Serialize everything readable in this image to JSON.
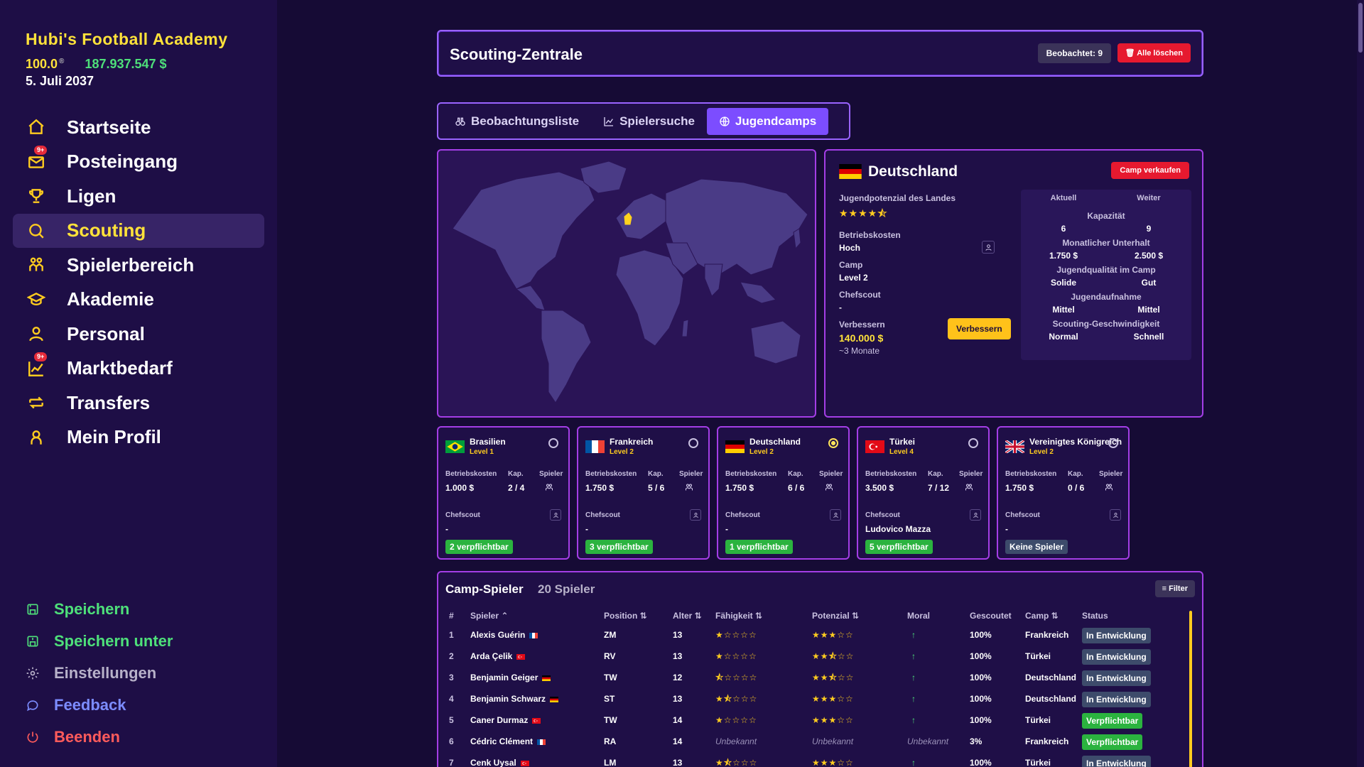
{
  "sidebar": {
    "brand": "Hubi's Football Academy",
    "reputation": "100.0",
    "reputation_mark": "®",
    "money": "187.937.547 $",
    "date": "5. Juli 2037",
    "nav": [
      {
        "label": "Startseite",
        "icon": "home-icon"
      },
      {
        "label": "Posteingang",
        "icon": "mail-icon",
        "badge": "9+"
      },
      {
        "label": "Ligen",
        "icon": "trophy-icon"
      },
      {
        "label": "Scouting",
        "icon": "search-icon",
        "active": true
      },
      {
        "label": "Spielerbereich",
        "icon": "players-icon"
      },
      {
        "label": "Akademie",
        "icon": "graduation-cap-icon"
      },
      {
        "label": "Personal",
        "icon": "staff-icon"
      },
      {
        "label": "Marktbedarf",
        "icon": "chart-icon",
        "badge": "9+"
      },
      {
        "label": "Transfers",
        "icon": "transfer-icon"
      },
      {
        "label": "Mein Profil",
        "icon": "profile-icon"
      }
    ],
    "bottom": [
      {
        "label": "Speichern",
        "icon": "save-icon"
      },
      {
        "label": "Speichern unter",
        "icon": "save-as-icon"
      },
      {
        "label": "Einstellungen",
        "icon": "gear-icon"
      },
      {
        "label": "Feedback",
        "icon": "chat-icon"
      },
      {
        "label": "Beenden",
        "icon": "power-icon"
      }
    ]
  },
  "header": {
    "title": "Scouting-Zentrale",
    "observed": "Beobachtet: 9",
    "clear_all": "Alle löschen"
  },
  "tabs": [
    {
      "label": "Beobachtungsliste",
      "icon": "binoculars-icon"
    },
    {
      "label": "Spielersuche",
      "icon": "chart-line-icon"
    },
    {
      "label": "Jugendcamps",
      "icon": "globe-icon",
      "active": true
    }
  ],
  "country": {
    "name": "Deutschland",
    "sell": "Camp verkaufen",
    "youth_potential_label": "Jugendpotenzial des Landes",
    "youth_potential_stars": 4.5,
    "youth_potential_display": "★★★★⯪",
    "operating_costs_label": "Betriebskosten",
    "operating_costs": "Hoch",
    "camp_label": "Camp",
    "camp": "Level 2",
    "chief_scout_label": "Chefscout",
    "chief_scout": "-",
    "improve_label": "Verbessern",
    "improve_cost": "140.000 $",
    "improve_duration": "~3 Monate",
    "improve_button": "Verbessern",
    "compare": {
      "current": "Aktuell",
      "next": "Weiter",
      "rows": [
        {
          "label": "Kapazität",
          "current": "6",
          "next": "9"
        },
        {
          "label": "Monatlicher Unterhalt",
          "current": "1.750 $",
          "next": "2.500 $"
        },
        {
          "label": "Jugendqualität im Camp",
          "current": "Solide",
          "next": "Gut"
        },
        {
          "label": "Jugendaufnahme",
          "current": "Mittel",
          "next": "Mittel"
        },
        {
          "label": "Scouting-Geschwindigkeit",
          "current": "Normal",
          "next": "Schnell"
        }
      ]
    }
  },
  "camp_labels": {
    "costs": "Betriebskosten",
    "cap": "Kap.",
    "players": "Spieler",
    "chief": "Chefscout"
  },
  "camps": [
    {
      "name": "Brasilien",
      "level": "Level 1",
      "costs": "1.000 $",
      "cap": "2 / 4",
      "chief": "-",
      "pill": "2 verpflichtbar",
      "pill_type": "green",
      "selected": false
    },
    {
      "name": "Frankreich",
      "level": "Level 2",
      "costs": "1.750 $",
      "cap": "5 / 6",
      "chief": "-",
      "pill": "3 verpflichtbar",
      "pill_type": "green",
      "selected": false
    },
    {
      "name": "Deutschland",
      "level": "Level 2",
      "costs": "1.750 $",
      "cap": "6 / 6",
      "chief": "-",
      "pill": "1 verpflichtbar",
      "pill_type": "green",
      "selected": true
    },
    {
      "name": "Türkei",
      "level": "Level 4",
      "costs": "3.500 $",
      "cap": "7 / 12",
      "chief": "Ludovico Mazza",
      "pill": "5 verpflichtbar",
      "pill_type": "green",
      "selected": false
    },
    {
      "name": "Vereinigtes Königreich",
      "level": "Level 2",
      "costs": "1.750 $",
      "cap": "0 / 6",
      "chief": "-",
      "pill": "Keine Spieler",
      "pill_type": "gray",
      "selected": false
    }
  ],
  "players": {
    "title": "Camp-Spieler",
    "count": "20 Spieler",
    "filter": "Filter",
    "columns": [
      "#",
      "Spieler ⌃",
      "Position ⇅",
      "Alter ⇅",
      "Fähigkeit ⇅",
      "Potenzial ⇅",
      "Moral",
      "Gescoutet",
      "Camp ⇅",
      "Status"
    ],
    "rows": [
      {
        "n": "1",
        "name": "Alexis Guérin",
        "flag": "fr",
        "pos": "ZM",
        "age": "13",
        "skill": "★☆☆☆☆",
        "pot": "★★★☆☆",
        "moral": "↑",
        "scouted": "100%",
        "camp": "Frankreich",
        "status": "In Entwicklung",
        "st": "dev"
      },
      {
        "n": "2",
        "name": "Arda Çelik",
        "flag": "tr",
        "pos": "RV",
        "age": "13",
        "skill": "★☆☆☆☆",
        "pot": "★★⯪☆☆",
        "moral": "↑",
        "scouted": "100%",
        "camp": "Türkei",
        "status": "In Entwicklung",
        "st": "dev"
      },
      {
        "n": "3",
        "name": "Benjamin Geiger",
        "flag": "de",
        "pos": "TW",
        "age": "12",
        "skill": "⯪☆☆☆☆",
        "pot": "★★⯪☆☆",
        "moral": "↑",
        "scouted": "100%",
        "camp": "Deutschland",
        "status": "In Entwicklung",
        "st": "dev"
      },
      {
        "n": "4",
        "name": "Benjamin Schwarz",
        "flag": "de",
        "pos": "ST",
        "age": "13",
        "skill": "★⯪☆☆☆",
        "pot": "★★★☆☆",
        "moral": "↑",
        "scouted": "100%",
        "camp": "Deutschland",
        "status": "In Entwicklung",
        "st": "dev"
      },
      {
        "n": "5",
        "name": "Caner Durmaz",
        "flag": "tr",
        "pos": "TW",
        "age": "14",
        "skill": "★☆☆☆☆",
        "pot": "★★★☆☆",
        "moral": "↑",
        "scouted": "100%",
        "camp": "Türkei",
        "status": "Verpflichtbar",
        "st": "ok"
      },
      {
        "n": "6",
        "name": "Cédric Clément",
        "flag": "fr",
        "pos": "RA",
        "age": "14",
        "skill": "Unbekannt",
        "pot": "Unbekannt",
        "moral": "Unbekannt",
        "scouted": "3%",
        "camp": "Frankreich",
        "status": "Verpflichtbar",
        "st": "ok",
        "unknown": true
      },
      {
        "n": "7",
        "name": "Cenk Uysal",
        "flag": "tr",
        "pos": "LM",
        "age": "13",
        "skill": "★⯪☆☆☆",
        "pot": "★★★☆☆",
        "moral": "↑",
        "scouted": "100%",
        "camp": "Türkei",
        "status": "In Entwicklung",
        "st": "dev"
      }
    ]
  }
}
